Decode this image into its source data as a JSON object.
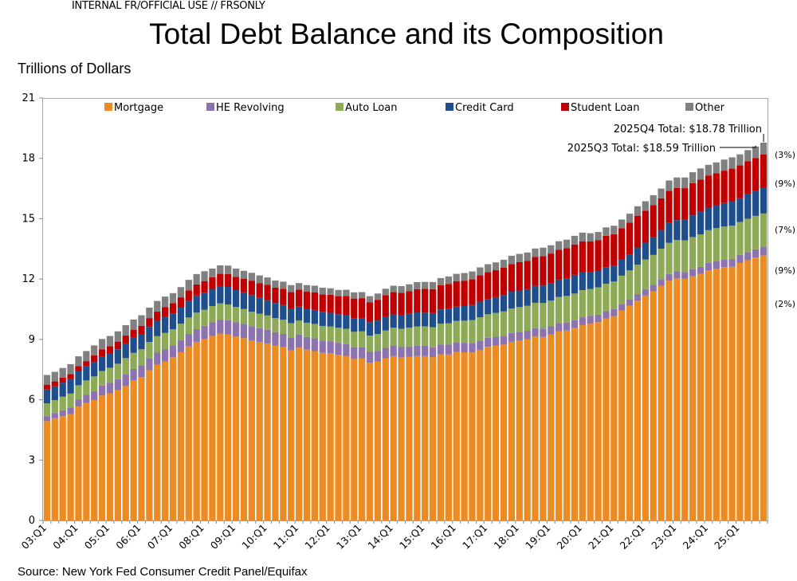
{
  "classification": "INTERNAL FR/OFFICIAL USE // FRSONLY",
  "title": "Total Debt Balance and its Composition",
  "units_label": "Trillions of Dollars",
  "source": "Source: New York Fed Consumer Credit Panel/Equifax",
  "chart_data": {
    "type": "bar",
    "stacked": true,
    "title": "Total Debt Balance and its Composition",
    "ylabel": "Trillions of Dollars",
    "ylim": [
      0,
      21
    ],
    "y_ticks": [
      "0",
      "3",
      "6",
      "9",
      "12",
      "15",
      "18",
      "21"
    ],
    "grid": false,
    "legend_position": "top",
    "x_tick_labels": [
      "03:Q1",
      "04:Q1",
      "05:Q1",
      "06:Q1",
      "07:Q1",
      "08:Q1",
      "09:Q1",
      "10:Q1",
      "11:Q1",
      "12:Q1",
      "13:Q1",
      "14:Q1",
      "15:Q1",
      "16:Q1",
      "17:Q1",
      "18:Q1",
      "19:Q1",
      "20:Q1",
      "21:Q1",
      "22:Q1",
      "23:Q1",
      "24:Q1",
      "25:Q1"
    ],
    "period": "2003Q1-2025Q4 quarterly",
    "series": [
      {
        "name": "Mortgage",
        "color": "#ED8B23",
        "values": [
          4.94,
          5.08,
          5.18,
          5.29,
          5.66,
          5.84,
          5.98,
          6.21,
          6.31,
          6.47,
          6.68,
          6.96,
          7.13,
          7.47,
          7.74,
          7.9,
          8.11,
          8.36,
          8.65,
          8.88,
          9.02,
          9.17,
          9.29,
          9.24,
          9.14,
          9.06,
          8.94,
          8.87,
          8.8,
          8.69,
          8.61,
          8.45,
          8.59,
          8.49,
          8.42,
          8.33,
          8.31,
          8.24,
          8.18,
          8.03,
          8.05,
          7.84,
          7.9,
          8.05,
          8.17,
          8.1,
          8.14,
          8.17,
          8.17,
          8.12,
          8.26,
          8.25,
          8.37,
          8.36,
          8.35,
          8.48,
          8.63,
          8.69,
          8.74,
          8.88,
          8.94,
          9.0,
          9.14,
          9.12,
          9.24,
          9.41,
          9.44,
          9.56,
          9.71,
          9.78,
          9.86,
          10.04,
          10.16,
          10.44,
          10.67,
          10.93,
          11.18,
          11.39,
          11.67,
          11.92,
          12.04,
          12.01,
          12.14,
          12.25,
          12.44,
          12.52,
          12.59,
          12.61,
          12.8,
          12.94,
          13.07,
          13.17
        ]
      },
      {
        "name": "HE Revolving",
        "color": "#8C72AE",
        "values": [
          0.24,
          0.26,
          0.29,
          0.32,
          0.36,
          0.4,
          0.45,
          0.49,
          0.53,
          0.55,
          0.57,
          0.57,
          0.58,
          0.59,
          0.6,
          0.6,
          0.6,
          0.61,
          0.62,
          0.63,
          0.66,
          0.68,
          0.69,
          0.71,
          0.71,
          0.71,
          0.71,
          0.69,
          0.68,
          0.67,
          0.66,
          0.65,
          0.64,
          0.63,
          0.63,
          0.61,
          0.6,
          0.59,
          0.58,
          0.57,
          0.56,
          0.54,
          0.53,
          0.53,
          0.53,
          0.52,
          0.51,
          0.51,
          0.51,
          0.49,
          0.49,
          0.49,
          0.48,
          0.47,
          0.47,
          0.46,
          0.45,
          0.44,
          0.44,
          0.44,
          0.44,
          0.43,
          0.42,
          0.42,
          0.41,
          0.4,
          0.4,
          0.39,
          0.39,
          0.39,
          0.37,
          0.36,
          0.35,
          0.33,
          0.32,
          0.32,
          0.32,
          0.32,
          0.32,
          0.33,
          0.34,
          0.34,
          0.35,
          0.36,
          0.37,
          0.38,
          0.38,
          0.39,
          0.4,
          0.4,
          0.41,
          0.42
        ]
      },
      {
        "name": "Auto Loan",
        "color": "#8DAA56",
        "values": [
          0.64,
          0.64,
          0.68,
          0.7,
          0.7,
          0.72,
          0.73,
          0.73,
          0.75,
          0.77,
          0.82,
          0.8,
          0.8,
          0.81,
          0.82,
          0.82,
          0.8,
          0.81,
          0.82,
          0.82,
          0.8,
          0.81,
          0.81,
          0.79,
          0.76,
          0.74,
          0.73,
          0.72,
          0.71,
          0.7,
          0.71,
          0.71,
          0.71,
          0.71,
          0.72,
          0.73,
          0.73,
          0.75,
          0.77,
          0.78,
          0.79,
          0.81,
          0.84,
          0.86,
          0.88,
          0.91,
          0.94,
          0.96,
          0.97,
          1.0,
          1.03,
          1.06,
          1.07,
          1.1,
          1.14,
          1.16,
          1.17,
          1.19,
          1.21,
          1.22,
          1.23,
          1.24,
          1.26,
          1.27,
          1.28,
          1.3,
          1.32,
          1.33,
          1.35,
          1.34,
          1.36,
          1.37,
          1.37,
          1.4,
          1.44,
          1.46,
          1.47,
          1.49,
          1.52,
          1.55,
          1.56,
          1.57,
          1.6,
          1.61,
          1.62,
          1.63,
          1.64,
          1.66,
          1.64,
          1.66,
          1.66,
          1.67
        ]
      },
      {
        "name": "Credit Card",
        "color": "#1F4E8C",
        "values": [
          0.69,
          0.69,
          0.7,
          0.72,
          0.69,
          0.7,
          0.71,
          0.73,
          0.71,
          0.72,
          0.73,
          0.75,
          0.74,
          0.75,
          0.77,
          0.8,
          0.78,
          0.8,
          0.82,
          0.85,
          0.84,
          0.85,
          0.86,
          0.87,
          0.84,
          0.83,
          0.82,
          0.8,
          0.76,
          0.75,
          0.73,
          0.73,
          0.69,
          0.69,
          0.7,
          0.7,
          0.68,
          0.67,
          0.67,
          0.68,
          0.66,
          0.67,
          0.67,
          0.68,
          0.66,
          0.67,
          0.68,
          0.7,
          0.68,
          0.7,
          0.71,
          0.73,
          0.71,
          0.73,
          0.75,
          0.78,
          0.76,
          0.78,
          0.81,
          0.83,
          0.82,
          0.83,
          0.84,
          0.87,
          0.85,
          0.87,
          0.88,
          0.93,
          0.89,
          0.82,
          0.81,
          0.82,
          0.77,
          0.79,
          0.8,
          0.86,
          0.84,
          0.89,
          0.93,
          0.99,
          0.99,
          1.03,
          1.08,
          1.13,
          1.12,
          1.14,
          1.17,
          1.21,
          1.18,
          1.21,
          1.23,
          1.28
        ]
      },
      {
        "name": "Student Loan",
        "color": "#C00000",
        "values": [
          0.24,
          0.24,
          0.25,
          0.25,
          0.26,
          0.26,
          0.33,
          0.35,
          0.36,
          0.38,
          0.39,
          0.39,
          0.43,
          0.44,
          0.46,
          0.48,
          0.51,
          0.51,
          0.53,
          0.55,
          0.58,
          0.58,
          0.61,
          0.64,
          0.66,
          0.68,
          0.72,
          0.72,
          0.76,
          0.76,
          0.81,
          0.81,
          0.84,
          0.85,
          0.87,
          0.87,
          0.9,
          0.9,
          0.96,
          0.97,
          0.99,
          0.99,
          1.03,
          1.08,
          1.11,
          1.12,
          1.13,
          1.16,
          1.19,
          1.19,
          1.2,
          1.23,
          1.26,
          1.26,
          1.28,
          1.31,
          1.34,
          1.34,
          1.36,
          1.38,
          1.41,
          1.41,
          1.44,
          1.46,
          1.49,
          1.48,
          1.5,
          1.51,
          1.54,
          1.54,
          1.54,
          1.56,
          1.58,
          1.57,
          1.58,
          1.58,
          1.59,
          1.59,
          1.57,
          1.6,
          1.6,
          1.57,
          1.6,
          1.6,
          1.6,
          1.59,
          1.61,
          1.62,
          1.63,
          1.64,
          1.65,
          1.66
        ]
      },
      {
        "name": "Other",
        "color": "#808080",
        "values": [
          0.48,
          0.48,
          0.48,
          0.49,
          0.49,
          0.5,
          0.5,
          0.51,
          0.51,
          0.51,
          0.52,
          0.52,
          0.52,
          0.52,
          0.52,
          0.53,
          0.5,
          0.51,
          0.52,
          0.52,
          0.49,
          0.43,
          0.42,
          0.42,
          0.41,
          0.39,
          0.39,
          0.38,
          0.37,
          0.36,
          0.35,
          0.35,
          0.33,
          0.33,
          0.33,
          0.33,
          0.32,
          0.31,
          0.31,
          0.31,
          0.3,
          0.3,
          0.31,
          0.32,
          0.32,
          0.33,
          0.34,
          0.35,
          0.34,
          0.35,
          0.36,
          0.37,
          0.37,
          0.38,
          0.39,
          0.39,
          0.39,
          0.39,
          0.4,
          0.41,
          0.41,
          0.41,
          0.42,
          0.42,
          0.41,
          0.42,
          0.42,
          0.43,
          0.43,
          0.41,
          0.4,
          0.42,
          0.42,
          0.43,
          0.44,
          0.47,
          0.47,
          0.49,
          0.49,
          0.51,
          0.52,
          0.53,
          0.54,
          0.55,
          0.53,
          0.54,
          0.55,
          0.56,
          0.55,
          0.56,
          0.57,
          0.58
        ]
      }
    ],
    "annotations": [
      {
        "text": "2025Q4 Total: $18.78 Trillion",
        "quarter": "2025Q4",
        "value": 18.78
      },
      {
        "text": "2025Q3 Total: $18.59 Trillion",
        "quarter": "2025Q3",
        "value": 18.59
      }
    ],
    "share_labels": [
      "(3%)",
      "(9%)",
      "(7%)",
      "(9%)",
      "(2%)"
    ]
  }
}
